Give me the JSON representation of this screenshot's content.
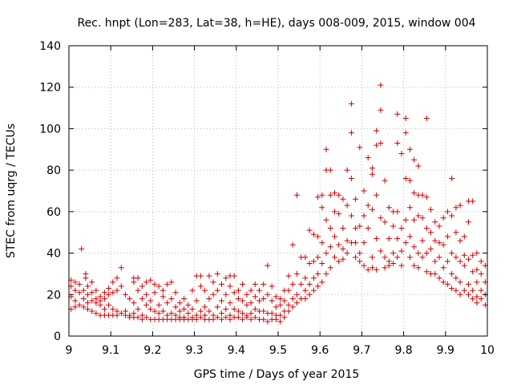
{
  "chart_data": {
    "type": "scatter",
    "title": "Rec. hnpt (Lon=283, Lat=38, h=HE), days 008-009, 2015, window 004",
    "xlabel": "GPS time / Days of year 2015",
    "ylabel": "STEC from uqrg / TECUs",
    "xlim": [
      9,
      10
    ],
    "ylim": [
      0,
      140
    ],
    "xticks": [
      "9",
      "9.1",
      "9.2",
      "9.3",
      "9.4",
      "9.5",
      "9.6",
      "9.7",
      "9.8",
      "9.9",
      "10"
    ],
    "yticks": [
      "0",
      "20",
      "40",
      "60",
      "80",
      "100",
      "120",
      "140"
    ],
    "grid": true,
    "marker": "+",
    "color": "#d20000",
    "points": [
      [
        9.005,
        27
      ],
      [
        9.005,
        24
      ],
      [
        9.005,
        19
      ],
      [
        9.005,
        13
      ],
      [
        9.015,
        26
      ],
      [
        9.015,
        22
      ],
      [
        9.015,
        17
      ],
      [
        9.015,
        14
      ],
      [
        9.025,
        25
      ],
      [
        9.025,
        21
      ],
      [
        9.025,
        15
      ],
      [
        9.03,
        42
      ],
      [
        9.035,
        22
      ],
      [
        9.035,
        18
      ],
      [
        9.035,
        14
      ],
      [
        9.04,
        30
      ],
      [
        9.04,
        28
      ],
      [
        9.045,
        24
      ],
      [
        9.045,
        20
      ],
      [
        9.045,
        16
      ],
      [
        9.045,
        13
      ],
      [
        9.055,
        26
      ],
      [
        9.055,
        21
      ],
      [
        9.055,
        17
      ],
      [
        9.055,
        12
      ],
      [
        9.065,
        22
      ],
      [
        9.065,
        18
      ],
      [
        9.065,
        16
      ],
      [
        9.065,
        11
      ],
      [
        9.075,
        19
      ],
      [
        9.075,
        17
      ],
      [
        9.075,
        15
      ],
      [
        9.075,
        10
      ],
      [
        9.085,
        21
      ],
      [
        9.085,
        18
      ],
      [
        9.085,
        13
      ],
      [
        9.085,
        10
      ],
      [
        9.095,
        23
      ],
      [
        9.095,
        20
      ],
      [
        9.095,
        15
      ],
      [
        9.095,
        10
      ],
      [
        9.105,
        26
      ],
      [
        9.105,
        21
      ],
      [
        9.105,
        13
      ],
      [
        9.105,
        10
      ],
      [
        9.115,
        28
      ],
      [
        9.115,
        22
      ],
      [
        9.115,
        12
      ],
      [
        9.115,
        10
      ],
      [
        9.125,
        33
      ],
      [
        9.125,
        24
      ],
      [
        9.125,
        11
      ],
      [
        9.135,
        20
      ],
      [
        9.135,
        12
      ],
      [
        9.135,
        10
      ],
      [
        9.145,
        18
      ],
      [
        9.145,
        10
      ],
      [
        9.145,
        9
      ],
      [
        9.155,
        28
      ],
      [
        9.155,
        26
      ],
      [
        9.155,
        16
      ],
      [
        9.155,
        11
      ],
      [
        9.155,
        9
      ],
      [
        9.165,
        28
      ],
      [
        9.165,
        22
      ],
      [
        9.165,
        13
      ],
      [
        9.165,
        9
      ],
      [
        9.175,
        24
      ],
      [
        9.175,
        18
      ],
      [
        9.175,
        10
      ],
      [
        9.175,
        8
      ],
      [
        9.185,
        26
      ],
      [
        9.185,
        20
      ],
      [
        9.185,
        15
      ],
      [
        9.185,
        9
      ],
      [
        9.195,
        27
      ],
      [
        9.195,
        17
      ],
      [
        9.195,
        13
      ],
      [
        9.195,
        8
      ],
      [
        9.205,
        25
      ],
      [
        9.205,
        21
      ],
      [
        9.205,
        12
      ],
      [
        9.205,
        8
      ],
      [
        9.215,
        24
      ],
      [
        9.215,
        15
      ],
      [
        9.215,
        11
      ],
      [
        9.215,
        8
      ],
      [
        9.225,
        22
      ],
      [
        9.225,
        19
      ],
      [
        9.225,
        12
      ],
      [
        9.225,
        8
      ],
      [
        9.235,
        25
      ],
      [
        9.235,
        16
      ],
      [
        9.235,
        10
      ],
      [
        9.235,
        8
      ],
      [
        9.245,
        26
      ],
      [
        9.245,
        18
      ],
      [
        9.245,
        11
      ],
      [
        9.245,
        8
      ],
      [
        9.255,
        21
      ],
      [
        9.255,
        14
      ],
      [
        9.255,
        10
      ],
      [
        9.255,
        8
      ],
      [
        9.265,
        16
      ],
      [
        9.265,
        12
      ],
      [
        9.265,
        9
      ],
      [
        9.265,
        8
      ],
      [
        9.275,
        18
      ],
      [
        9.275,
        13
      ],
      [
        9.275,
        9
      ],
      [
        9.275,
        8
      ],
      [
        9.285,
        15
      ],
      [
        9.285,
        11
      ],
      [
        9.285,
        8
      ],
      [
        9.295,
        22
      ],
      [
        9.295,
        13
      ],
      [
        9.295,
        9
      ],
      [
        9.295,
        8
      ],
      [
        9.305,
        29
      ],
      [
        9.305,
        17
      ],
      [
        9.305,
        10
      ],
      [
        9.305,
        8
      ],
      [
        9.315,
        29
      ],
      [
        9.315,
        24
      ],
      [
        9.315,
        12
      ],
      [
        9.315,
        9
      ],
      [
        9.325,
        22
      ],
      [
        9.325,
        14
      ],
      [
        9.325,
        10
      ],
      [
        9.325,
        8
      ],
      [
        9.335,
        29
      ],
      [
        9.335,
        18
      ],
      [
        9.335,
        12
      ],
      [
        9.335,
        8
      ],
      [
        9.345,
        26
      ],
      [
        9.345,
        20
      ],
      [
        9.345,
        10
      ],
      [
        9.345,
        8
      ],
      [
        9.355,
        30
      ],
      [
        9.355,
        22
      ],
      [
        9.355,
        14
      ],
      [
        9.355,
        9
      ],
      [
        9.365,
        25
      ],
      [
        9.365,
        17
      ],
      [
        9.365,
        11
      ],
      [
        9.365,
        8
      ],
      [
        9.375,
        28
      ],
      [
        9.375,
        20
      ],
      [
        9.375,
        13
      ],
      [
        9.375,
        9
      ],
      [
        9.385,
        29
      ],
      [
        9.385,
        24
      ],
      [
        9.385,
        16
      ],
      [
        9.385,
        10
      ],
      [
        9.385,
        8
      ],
      [
        9.395,
        29
      ],
      [
        9.395,
        21
      ],
      [
        9.395,
        13
      ],
      [
        9.395,
        9
      ],
      [
        9.405,
        22
      ],
      [
        9.405,
        18
      ],
      [
        9.405,
        12
      ],
      [
        9.405,
        9
      ],
      [
        9.415,
        25
      ],
      [
        9.415,
        17
      ],
      [
        9.415,
        11
      ],
      [
        9.415,
        8
      ],
      [
        9.425,
        20
      ],
      [
        9.425,
        15
      ],
      [
        9.425,
        10
      ],
      [
        9.425,
        9
      ],
      [
        9.435,
        22
      ],
      [
        9.435,
        16
      ],
      [
        9.435,
        11
      ],
      [
        9.435,
        8
      ],
      [
        9.445,
        25
      ],
      [
        9.445,
        19
      ],
      [
        9.445,
        13
      ],
      [
        9.445,
        9
      ],
      [
        9.455,
        22
      ],
      [
        9.455,
        17
      ],
      [
        9.455,
        12
      ],
      [
        9.455,
        8
      ],
      [
        9.465,
        25
      ],
      [
        9.465,
        18
      ],
      [
        9.465,
        12
      ],
      [
        9.465,
        8
      ],
      [
        9.475,
        34
      ],
      [
        9.475,
        20
      ],
      [
        9.475,
        11
      ],
      [
        9.475,
        7
      ],
      [
        9.485,
        24
      ],
      [
        9.485,
        17
      ],
      [
        9.485,
        11
      ],
      [
        9.485,
        8
      ],
      [
        9.495,
        19
      ],
      [
        9.495,
        14
      ],
      [
        9.495,
        10
      ],
      [
        9.495,
        8
      ],
      [
        9.505,
        18
      ],
      [
        9.505,
        15
      ],
      [
        9.505,
        10
      ],
      [
        9.505,
        7
      ],
      [
        9.515,
        22
      ],
      [
        9.515,
        17
      ],
      [
        9.515,
        12
      ],
      [
        9.515,
        9
      ],
      [
        9.525,
        29
      ],
      [
        9.525,
        22
      ],
      [
        9.525,
        15
      ],
      [
        9.525,
        12
      ],
      [
        9.535,
        44
      ],
      [
        9.535,
        25
      ],
      [
        9.535,
        18
      ],
      [
        9.535,
        14
      ],
      [
        9.545,
        68
      ],
      [
        9.545,
        30
      ],
      [
        9.545,
        20
      ],
      [
        9.545,
        16
      ],
      [
        9.555,
        38
      ],
      [
        9.555,
        25
      ],
      [
        9.555,
        18
      ],
      [
        9.565,
        38
      ],
      [
        9.565,
        28
      ],
      [
        9.565,
        22
      ],
      [
        9.565,
        18
      ],
      [
        9.575,
        51
      ],
      [
        9.575,
        35
      ],
      [
        9.575,
        25
      ],
      [
        9.575,
        20
      ],
      [
        9.585,
        49
      ],
      [
        9.585,
        36
      ],
      [
        9.585,
        28
      ],
      [
        9.585,
        22
      ],
      [
        9.595,
        67
      ],
      [
        9.595,
        48
      ],
      [
        9.595,
        38
      ],
      [
        9.595,
        30
      ],
      [
        9.595,
        24
      ],
      [
        9.605,
        68
      ],
      [
        9.605,
        62
      ],
      [
        9.605,
        45
      ],
      [
        9.605,
        35
      ],
      [
        9.605,
        26
      ],
      [
        9.615,
        90
      ],
      [
        9.615,
        80
      ],
      [
        9.615,
        56
      ],
      [
        9.615,
        40
      ],
      [
        9.615,
        30
      ],
      [
        9.625,
        80
      ],
      [
        9.625,
        68
      ],
      [
        9.625,
        52
      ],
      [
        9.625,
        43
      ],
      [
        9.625,
        33
      ],
      [
        9.635,
        69
      ],
      [
        9.635,
        60
      ],
      [
        9.635,
        48
      ],
      [
        9.635,
        38
      ],
      [
        9.645,
        68
      ],
      [
        9.645,
        59
      ],
      [
        9.645,
        44
      ],
      [
        9.645,
        36
      ],
      [
        9.655,
        66
      ],
      [
        9.655,
        52
      ],
      [
        9.655,
        42
      ],
      [
        9.655,
        37
      ],
      [
        9.665,
        80
      ],
      [
        9.665,
        63
      ],
      [
        9.665,
        46
      ],
      [
        9.665,
        40
      ],
      [
        9.675,
        112
      ],
      [
        9.675,
        98
      ],
      [
        9.675,
        76
      ],
      [
        9.675,
        58
      ],
      [
        9.675,
        45
      ],
      [
        9.685,
        66
      ],
      [
        9.685,
        52
      ],
      [
        9.685,
        45
      ],
      [
        9.685,
        38
      ],
      [
        9.695,
        91
      ],
      [
        9.695,
        53
      ],
      [
        9.695,
        40
      ],
      [
        9.695,
        36
      ],
      [
        9.705,
        70
      ],
      [
        9.705,
        58
      ],
      [
        9.705,
        45
      ],
      [
        9.705,
        34
      ],
      [
        9.715,
        86
      ],
      [
        9.715,
        63
      ],
      [
        9.715,
        52
      ],
      [
        9.715,
        32
      ],
      [
        9.725,
        81
      ],
      [
        9.725,
        78
      ],
      [
        9.725,
        61
      ],
      [
        9.725,
        38
      ],
      [
        9.725,
        33
      ],
      [
        9.735,
        99
      ],
      [
        9.735,
        92
      ],
      [
        9.735,
        68
      ],
      [
        9.735,
        47
      ],
      [
        9.735,
        32
      ],
      [
        9.745,
        121
      ],
      [
        9.745,
        109
      ],
      [
        9.745,
        93
      ],
      [
        9.745,
        57
      ],
      [
        9.745,
        41
      ],
      [
        9.755,
        75
      ],
      [
        9.755,
        55
      ],
      [
        9.755,
        38
      ],
      [
        9.755,
        33
      ],
      [
        9.765,
        62
      ],
      [
        9.765,
        47
      ],
      [
        9.765,
        36
      ],
      [
        9.765,
        34
      ],
      [
        9.775,
        60
      ],
      [
        9.775,
        53
      ],
      [
        9.775,
        40
      ],
      [
        9.775,
        35
      ],
      [
        9.785,
        107
      ],
      [
        9.785,
        93
      ],
      [
        9.785,
        60
      ],
      [
        9.785,
        47
      ],
      [
        9.785,
        38
      ],
      [
        9.795,
        88
      ],
      [
        9.795,
        52
      ],
      [
        9.795,
        41
      ],
      [
        9.795,
        34
      ],
      [
        9.805,
        105
      ],
      [
        9.805,
        98
      ],
      [
        9.805,
        76
      ],
      [
        9.805,
        56
      ],
      [
        9.805,
        45
      ],
      [
        9.815,
        90
      ],
      [
        9.815,
        75
      ],
      [
        9.815,
        62
      ],
      [
        9.815,
        48
      ],
      [
        9.815,
        38
      ],
      [
        9.825,
        85
      ],
      [
        9.825,
        69
      ],
      [
        9.825,
        56
      ],
      [
        9.825,
        43
      ],
      [
        9.825,
        34
      ],
      [
        9.835,
        82
      ],
      [
        9.835,
        68
      ],
      [
        9.835,
        58
      ],
      [
        9.835,
        40
      ],
      [
        9.835,
        33
      ],
      [
        9.845,
        68
      ],
      [
        9.845,
        57
      ],
      [
        9.845,
        46
      ],
      [
        9.845,
        38
      ],
      [
        9.855,
        105
      ],
      [
        9.855,
        67
      ],
      [
        9.855,
        52
      ],
      [
        9.855,
        40
      ],
      [
        9.855,
        31
      ],
      [
        9.865,
        61
      ],
      [
        9.865,
        50
      ],
      [
        9.865,
        42
      ],
      [
        9.865,
        30
      ],
      [
        9.875,
        55
      ],
      [
        9.875,
        46
      ],
      [
        9.875,
        36
      ],
      [
        9.875,
        30
      ],
      [
        9.885,
        53
      ],
      [
        9.885,
        45
      ],
      [
        9.885,
        38
      ],
      [
        9.885,
        28
      ],
      [
        9.895,
        57
      ],
      [
        9.895,
        44
      ],
      [
        9.895,
        33
      ],
      [
        9.895,
        26
      ],
      [
        9.905,
        60
      ],
      [
        9.905,
        48
      ],
      [
        9.905,
        36
      ],
      [
        9.905,
        25
      ],
      [
        9.915,
        76
      ],
      [
        9.915,
        58
      ],
      [
        9.915,
        40
      ],
      [
        9.915,
        30
      ],
      [
        9.915,
        23
      ],
      [
        9.925,
        62
      ],
      [
        9.925,
        50
      ],
      [
        9.925,
        38
      ],
      [
        9.925,
        28
      ],
      [
        9.925,
        22
      ],
      [
        9.935,
        63
      ],
      [
        9.935,
        46
      ],
      [
        9.935,
        36
      ],
      [
        9.935,
        26
      ],
      [
        9.935,
        20
      ],
      [
        9.945,
        48
      ],
      [
        9.945,
        39
      ],
      [
        9.945,
        34
      ],
      [
        9.945,
        22
      ],
      [
        9.955,
        65
      ],
      [
        9.955,
        55
      ],
      [
        9.955,
        37
      ],
      [
        9.955,
        25
      ],
      [
        9.955,
        20
      ],
      [
        9.965,
        65
      ],
      [
        9.965,
        39
      ],
      [
        9.965,
        31
      ],
      [
        9.965,
        22
      ],
      [
        9.965,
        18
      ],
      [
        9.975,
        40
      ],
      [
        9.975,
        32
      ],
      [
        9.975,
        26
      ],
      [
        9.975,
        19
      ],
      [
        9.975,
        16
      ],
      [
        9.985,
        36
      ],
      [
        9.985,
        30
      ],
      [
        9.985,
        22
      ],
      [
        9.985,
        18
      ],
      [
        9.995,
        34
      ],
      [
        9.995,
        26
      ],
      [
        9.995,
        20
      ],
      [
        9.995,
        15
      ]
    ]
  }
}
